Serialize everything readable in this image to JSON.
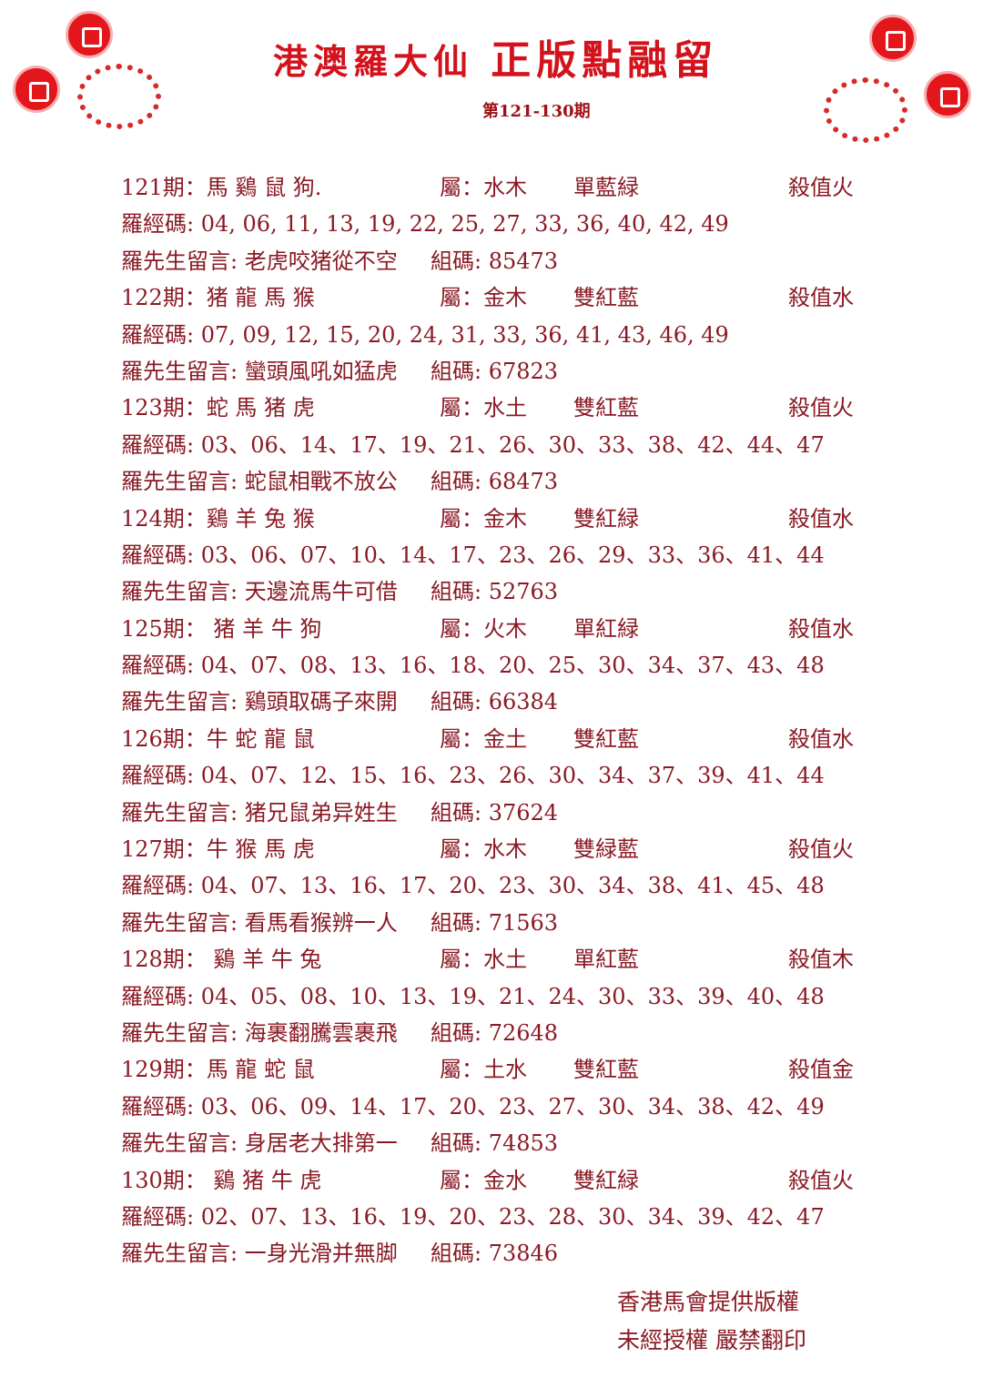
{
  "header": {
    "title_left": "港澳羅大仙",
    "title_right": "正版點融留",
    "issues": "第121-130期"
  },
  "records": [
    {
      "period": "121期：馬 鷄 鼠 狗.",
      "attr": "屬：水木",
      "color": "單藍緑",
      "kill": "殺值火",
      "codes": "羅經碼: 04, 06, 11, 13, 19, 22, 25, 27, 33, 36, 40, 42, 49",
      "message": "羅先生留言: 老虎咬猪從不空",
      "group": "組碼: 85473"
    },
    {
      "period": "122期：猪 龍 馬 猴",
      "attr": "屬：金木",
      "color": "雙紅藍",
      "kill": "殺值水",
      "codes": "羅經碼: 07, 09, 12, 15, 20, 24, 31, 33, 36, 41, 43, 46, 49",
      "message": "羅先生留言: 蠻頭風吼如猛虎",
      "group": "組碼: 67823"
    },
    {
      "period": "123期：蛇 馬 猪 虎",
      "attr": "屬：水土",
      "color": "雙紅藍",
      "kill": "殺值火",
      "codes": "羅經碼: 03、06、14、17、19、21、26、30、33、38、42、44、47",
      "message": "羅先生留言: 蛇鼠相戰不放公",
      "group": "組碼: 68473"
    },
    {
      "period": "124期：鷄 羊 兔 猴",
      "attr": "屬：金木",
      "color": "雙紅緑",
      "kill": "殺值水",
      "codes": "羅經碼: 03、06、07、10、14、17、23、26、29、33、36、41、44",
      "message": "羅先生留言: 天邊流馬牛可借",
      "group": "組碼: 52763"
    },
    {
      "period": "125期： 猪 羊 牛 狗",
      "attr": "屬：火木",
      "color": "單紅緑",
      "kill": "殺值水",
      "codes": "羅經碼: 04、07、08、13、16、18、20、25、30、34、37、43、48",
      "message": "羅先生留言: 鷄頭取碼子來開",
      "group": "組碼: 66384"
    },
    {
      "period": "126期：牛 蛇 龍 鼠",
      "attr": "屬：金土",
      "color": "雙紅藍",
      "kill": "殺值水",
      "codes": "羅經碼: 04、07、12、15、16、23、26、30、34、37、39、41、44",
      "message": "羅先生留言: 猪兄鼠弟异姓生",
      "group": "組碼: 37624"
    },
    {
      "period": "127期：牛 猴 馬 虎",
      "attr": "屬：水木",
      "color": "雙緑藍",
      "kill": "殺值火",
      "codes": "羅經碼: 04、07、13、16、17、20、23、30、34、38、41、45、48",
      "message": "羅先生留言: 看馬看猴辨一人",
      "group": "組碼: 71563"
    },
    {
      "period": "128期： 鷄 羊 牛 兔",
      "attr": "屬：水土",
      "color": "單紅藍",
      "kill": "殺值木",
      "codes": "羅經碼: 04、05、08、10、13、19、21、24、30、33、39、40、48",
      "message": "羅先生留言: 海裹翻騰雲裹飛",
      "group": "組碼: 72648"
    },
    {
      "period": "129期：馬 龍 蛇 鼠",
      "attr": "屬：土水",
      "color": "雙紅藍",
      "kill": "殺值金",
      "codes": "羅經碼: 03、06、09、14、17、20、23、27、30、34、38、42、49",
      "message": "羅先生留言: 身居老大排第一",
      "group": "組碼: 74853"
    },
    {
      "period": "130期： 鷄 猪 牛 虎",
      "attr": "屬：金水",
      "color": "雙紅緑",
      "kill": "殺值火",
      "codes": "羅經碼: 02、07、13、16、19、20、23、28、30、34、39、42、47",
      "message": "羅先生留言: 一身光滑并無脚",
      "group": "組碼: 73846"
    }
  ],
  "footer": {
    "line1": "香港馬會提供版權",
    "line2": "未經授權 嚴禁翻印"
  },
  "colors": {
    "title": "#d3121c",
    "text": "#8a1a24",
    "decoration": "#e3161c"
  }
}
